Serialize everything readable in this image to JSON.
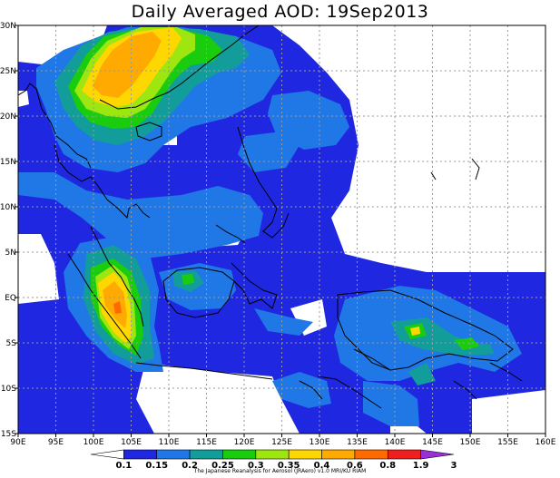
{
  "title": "Daily Averaged AOD: 19Sep2013",
  "credit": "The Japanese Reanalysis for Aerosol (JRAero) v1.0 MRI/KU RIAM",
  "map": {
    "lon_range": [
      90,
      160
    ],
    "lat_range": [
      -15,
      30
    ],
    "lon_ticks": [
      "90E",
      "95E",
      "100E",
      "105E",
      "110E",
      "115E",
      "120E",
      "125E",
      "130E",
      "135E",
      "140E",
      "145E",
      "150E",
      "155E",
      "160E"
    ],
    "lat_ticks": [
      "30N",
      "25N",
      "20N",
      "15N",
      "10N",
      "5N",
      "EQ",
      "5S",
      "10S",
      "15S"
    ],
    "gridlines": true
  },
  "colorbar": {
    "labels": [
      "0.1",
      "0.15",
      "0.2",
      "0.25",
      "0.3",
      "0.35",
      "0.4",
      "0.6",
      "0.8",
      "1.9",
      "3"
    ],
    "colors": [
      "#ffffff",
      "#1f28e0",
      "#1f78e6",
      "#129d9b",
      "#19cc0e",
      "#9ee60f",
      "#ffd700",
      "#ffaa00",
      "#ff6a00",
      "#ef1f1f",
      "#9b2fd6"
    ]
  },
  "palette": {
    "c0": "#ffffff",
    "c1": "#1f28e0",
    "c2": "#1f78e6",
    "c3": "#129d9b",
    "c4": "#19cc0e",
    "c5": "#9ee60f",
    "c6": "#ffd700",
    "c7": "#ffaa00",
    "c8": "#ff6a00"
  }
}
